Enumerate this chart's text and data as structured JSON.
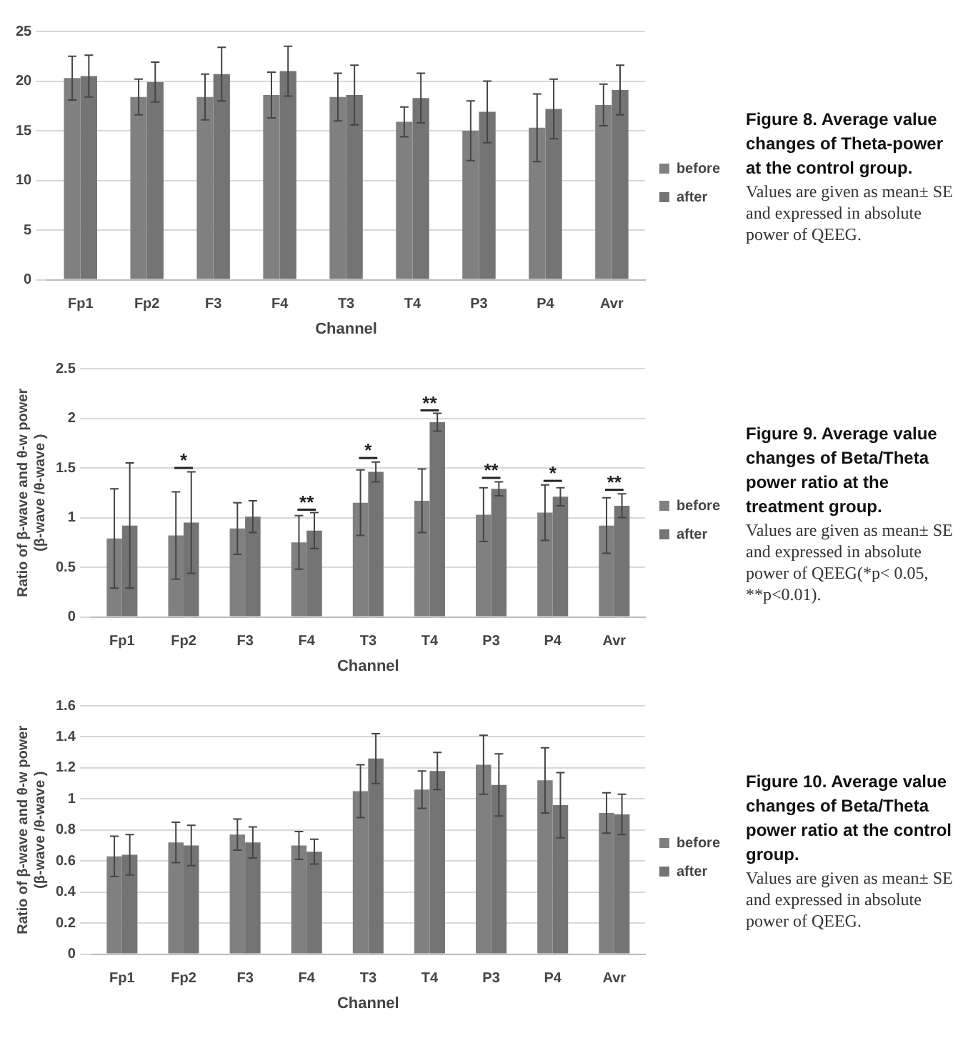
{
  "chart_data": [
    {
      "type": "bar",
      "xlabel": "Channel",
      "categories": [
        "Fp1",
        "Fp2",
        "F3",
        "F4",
        "T3",
        "T4",
        "P3",
        "P4",
        "Avr"
      ],
      "series": [
        {
          "name": "before",
          "color": "#808080",
          "values": [
            20.3,
            18.4,
            18.4,
            18.6,
            18.4,
            15.9,
            15.0,
            15.3,
            17.6
          ],
          "errors": [
            2.2,
            1.8,
            2.3,
            2.3,
            2.4,
            1.5,
            3.0,
            3.4,
            2.1
          ]
        },
        {
          "name": "after",
          "color": "#747474",
          "values": [
            20.5,
            19.9,
            20.7,
            21.0,
            18.6,
            18.3,
            16.9,
            17.2,
            19.1
          ],
          "errors": [
            2.1,
            2.0,
            2.7,
            2.5,
            3.0,
            2.5,
            3.1,
            3.0,
            2.5
          ]
        }
      ],
      "ylim": [
        0,
        25
      ],
      "yticks": [
        0,
        5,
        10,
        15,
        20,
        25
      ],
      "grid": "y",
      "legend": "right",
      "annotations": [
        "Figure 8. Average value changes of Theta-power at the control group.",
        "Values are given as mean± SE and expressed in absolute power of QEEG."
      ]
    },
    {
      "type": "bar",
      "xlabel": "Channel",
      "ylabel": "Ratio of β-wave and θ-w power (β-wave /θ-wave )",
      "categories": [
        "Fp1",
        "Fp2",
        "F3",
        "F4",
        "T3",
        "T4",
        "P3",
        "P4",
        "Avr"
      ],
      "series": [
        {
          "name": "before",
          "color": "#808080",
          "values": [
            0.79,
            0.82,
            0.89,
            0.75,
            1.15,
            1.17,
            1.03,
            1.05,
            0.92
          ],
          "errors": [
            0.5,
            0.44,
            0.26,
            0.27,
            0.33,
            0.32,
            0.27,
            0.28,
            0.28
          ]
        },
        {
          "name": "after",
          "color": "#747474",
          "values": [
            0.92,
            0.95,
            1.01,
            0.87,
            1.46,
            1.96,
            1.29,
            1.21,
            1.12
          ],
          "errors": [
            0.63,
            0.51,
            0.16,
            0.18,
            0.1,
            0.09,
            0.07,
            0.09,
            0.12
          ]
        }
      ],
      "ylim": [
        0,
        2.5
      ],
      "yticks": [
        0,
        0.5,
        1,
        1.5,
        2,
        2.5
      ],
      "grid": "y",
      "legend": "right",
      "annotations": [
        {
          "text": "*",
          "x": "Fp2",
          "y": 1.5
        },
        {
          "text": "**",
          "x": "F4",
          "y": 1.08
        },
        {
          "text": "*",
          "x": "T3",
          "y": 1.6
        },
        {
          "text": "**",
          "x": "T4",
          "y": 2.08
        },
        {
          "text": "**",
          "x": "P3",
          "y": 1.4
        },
        {
          "text": "*",
          "x": "P4",
          "y": 1.37
        },
        {
          "text": "**",
          "x": "Avr",
          "y": 1.28
        },
        "Figure 9. Average value changes of Beta/Theta power ratio at the treatment group.",
        "Values are given as mean± SE and expressed in absolute power of QEEG(*p< 0.05, **p<0.01)."
      ]
    },
    {
      "type": "bar",
      "xlabel": "Channel",
      "ylabel": "Ratio of β-wave and θ-w power (β-wave /θ-wave )",
      "categories": [
        "Fp1",
        "Fp2",
        "F3",
        "F4",
        "T3",
        "T4",
        "P3",
        "P4",
        "Avr"
      ],
      "series": [
        {
          "name": "before",
          "color": "#808080",
          "values": [
            0.63,
            0.72,
            0.77,
            0.7,
            1.05,
            1.06,
            1.22,
            1.12,
            0.91
          ],
          "errors": [
            0.13,
            0.13,
            0.1,
            0.09,
            0.17,
            0.12,
            0.19,
            0.21,
            0.13
          ]
        },
        {
          "name": "after",
          "color": "#747474",
          "values": [
            0.64,
            0.7,
            0.72,
            0.66,
            1.26,
            1.18,
            1.09,
            0.96,
            0.9
          ],
          "errors": [
            0.13,
            0.13,
            0.1,
            0.08,
            0.16,
            0.12,
            0.2,
            0.21,
            0.13
          ]
        }
      ],
      "ylim": [
        0,
        1.6
      ],
      "yticks": [
        0,
        0.2,
        0.4,
        0.6,
        0.8,
        1,
        1.2,
        1.4,
        1.6
      ],
      "grid": "y",
      "legend": "right",
      "annotations": [
        "Figure 10. Average value changes of Beta/Theta power ratio at the control group.",
        "Values are given as mean± SE and expressed in absolute power of QEEG."
      ]
    }
  ]
}
